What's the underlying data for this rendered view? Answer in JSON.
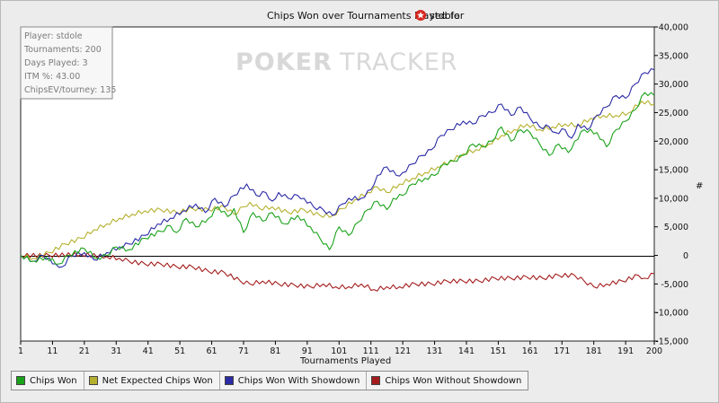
{
  "chart_data": {
    "type": "line",
    "title": "Chips Won over Tournaments Played for",
    "player_name": "stdole",
    "xlabel": "Tournaments Played",
    "ylabel": "#",
    "xlim": [
      1,
      200
    ],
    "ylim": [
      -15000,
      40000
    ],
    "x_ticks": [
      1,
      11,
      21,
      31,
      41,
      51,
      61,
      71,
      81,
      91,
      101,
      111,
      121,
      131,
      141,
      151,
      161,
      171,
      181,
      191,
      200
    ],
    "y_ticks": [
      "40,000",
      "35,000",
      "30,000",
      "25,000",
      "20,000",
      "15,000",
      "10,000",
      "5,000",
      "0",
      "-5,000",
      "-10,000",
      "-15,000"
    ],
    "legend_placement": "bottom-left",
    "series": [
      {
        "name": "Chips Won",
        "color": "#1aa21a",
        "points": [
          [
            1,
            0
          ],
          [
            5,
            -1000
          ],
          [
            9,
            -300
          ],
          [
            13,
            -1500
          ],
          [
            16,
            0
          ],
          [
            21,
            1200
          ],
          [
            25,
            -500
          ],
          [
            28,
            0
          ],
          [
            31,
            1500
          ],
          [
            35,
            1000
          ],
          [
            40,
            3000
          ],
          [
            45,
            4200
          ],
          [
            48,
            5200
          ],
          [
            50,
            4000
          ],
          [
            53,
            6500
          ],
          [
            56,
            5000
          ],
          [
            60,
            6500
          ],
          [
            63,
            8500
          ],
          [
            66,
            6800
          ],
          [
            68,
            8200
          ],
          [
            71,
            4000
          ],
          [
            74,
            7500
          ],
          [
            77,
            6000
          ],
          [
            80,
            7500
          ],
          [
            84,
            5500
          ],
          [
            88,
            7000
          ],
          [
            92,
            5000
          ],
          [
            95,
            3000
          ],
          [
            98,
            1000
          ],
          [
            101,
            5000
          ],
          [
            104,
            3500
          ],
          [
            107,
            5800
          ],
          [
            110,
            8000
          ],
          [
            113,
            9500
          ],
          [
            116,
            8000
          ],
          [
            118,
            10000
          ],
          [
            121,
            10500
          ],
          [
            124,
            12500
          ],
          [
            128,
            13500
          ],
          [
            131,
            14000
          ],
          [
            134,
            16000
          ],
          [
            137,
            16500
          ],
          [
            140,
            17500
          ],
          [
            143,
            19500
          ],
          [
            146,
            19000
          ],
          [
            149,
            20000
          ],
          [
            152,
            22500
          ],
          [
            155,
            20000
          ],
          [
            158,
            22000
          ],
          [
            161,
            21500
          ],
          [
            164,
            19500
          ],
          [
            167,
            17500
          ],
          [
            170,
            19500
          ],
          [
            173,
            18000
          ],
          [
            175,
            20000
          ],
          [
            178,
            22000
          ],
          [
            182,
            21500
          ],
          [
            185,
            19000
          ],
          [
            188,
            22000
          ],
          [
            191,
            23500
          ],
          [
            194,
            25500
          ],
          [
            197,
            28500
          ],
          [
            200,
            28000
          ]
        ]
      },
      {
        "name": "Net Expected Chips Won",
        "color": "#b5b02e",
        "points": [
          [
            1,
            0
          ],
          [
            5,
            -500
          ],
          [
            10,
            500
          ],
          [
            15,
            2000
          ],
          [
            20,
            3000
          ],
          [
            24,
            4500
          ],
          [
            28,
            5500
          ],
          [
            32,
            6500
          ],
          [
            36,
            7200
          ],
          [
            40,
            7800
          ],
          [
            45,
            8000
          ],
          [
            50,
            7500
          ],
          [
            55,
            8200
          ],
          [
            60,
            8000
          ],
          [
            65,
            8500
          ],
          [
            68,
            7200
          ],
          [
            71,
            8500
          ],
          [
            73,
            9300
          ],
          [
            76,
            8200
          ],
          [
            80,
            8500
          ],
          [
            85,
            7500
          ],
          [
            90,
            8000
          ],
          [
            95,
            7000
          ],
          [
            99,
            7000
          ],
          [
            102,
            8200
          ],
          [
            106,
            9800
          ],
          [
            110,
            11000
          ],
          [
            113,
            12000
          ],
          [
            116,
            11000
          ],
          [
            120,
            12500
          ],
          [
            124,
            13500
          ],
          [
            128,
            14500
          ],
          [
            132,
            15500
          ],
          [
            136,
            16500
          ],
          [
            140,
            17800
          ],
          [
            144,
            18500
          ],
          [
            148,
            19500
          ],
          [
            152,
            21000
          ],
          [
            156,
            22000
          ],
          [
            160,
            23000
          ],
          [
            164,
            22000
          ],
          [
            168,
            22500
          ],
          [
            172,
            23000
          ],
          [
            176,
            22800
          ],
          [
            180,
            24000
          ],
          [
            184,
            24500
          ],
          [
            188,
            24500
          ],
          [
            192,
            25000
          ],
          [
            196,
            27000
          ],
          [
            200,
            26500
          ]
        ]
      },
      {
        "name": "Chips Won With Showdown",
        "color": "#2b2ba6",
        "points": [
          [
            1,
            0
          ],
          [
            5,
            -1000
          ],
          [
            8,
            0
          ],
          [
            12,
            -1500
          ],
          [
            14,
            -2000
          ],
          [
            17,
            0
          ],
          [
            21,
            500
          ],
          [
            24,
            -800
          ],
          [
            28,
            500
          ],
          [
            32,
            1500
          ],
          [
            35,
            2000
          ],
          [
            40,
            3500
          ],
          [
            44,
            5500
          ],
          [
            48,
            6500
          ],
          [
            52,
            7800
          ],
          [
            56,
            9000
          ],
          [
            59,
            7500
          ],
          [
            62,
            10000
          ],
          [
            65,
            8500
          ],
          [
            68,
            10500
          ],
          [
            72,
            12500
          ],
          [
            75,
            10500
          ],
          [
            78,
            11000
          ],
          [
            80,
            9500
          ],
          [
            82,
            11000
          ],
          [
            85,
            10000
          ],
          [
            88,
            10500
          ],
          [
            90,
            10000
          ],
          [
            93,
            8500
          ],
          [
            96,
            8000
          ],
          [
            99,
            7000
          ],
          [
            102,
            9000
          ],
          [
            104,
            10000
          ],
          [
            108,
            10000
          ],
          [
            111,
            11500
          ],
          [
            113,
            14000
          ],
          [
            116,
            15500
          ],
          [
            119,
            14000
          ],
          [
            121,
            14500
          ],
          [
            124,
            16000
          ],
          [
            127,
            17500
          ],
          [
            130,
            18500
          ],
          [
            133,
            21000
          ],
          [
            136,
            22000
          ],
          [
            140,
            23500
          ],
          [
            143,
            23000
          ],
          [
            146,
            24500
          ],
          [
            149,
            25000
          ],
          [
            152,
            26500
          ],
          [
            155,
            24500
          ],
          [
            158,
            26000
          ],
          [
            161,
            24000
          ],
          [
            164,
            22500
          ],
          [
            167,
            22500
          ],
          [
            169,
            21500
          ],
          [
            172,
            22000
          ],
          [
            174,
            20500
          ],
          [
            176,
            23000
          ],
          [
            179,
            22000
          ],
          [
            182,
            24500
          ],
          [
            185,
            26000
          ],
          [
            188,
            28000
          ],
          [
            191,
            27500
          ],
          [
            194,
            30000
          ],
          [
            197,
            32000
          ],
          [
            200,
            32500
          ]
        ]
      },
      {
        "name": "Chips Won Without Showdown",
        "color": "#a41d1d",
        "points": [
          [
            1,
            0
          ],
          [
            10,
            0
          ],
          [
            20,
            200
          ],
          [
            28,
            -200
          ],
          [
            32,
            -500
          ],
          [
            35,
            -1000
          ],
          [
            40,
            -1500
          ],
          [
            45,
            -1500
          ],
          [
            50,
            -2000
          ],
          [
            55,
            -2000
          ],
          [
            60,
            -2800
          ],
          [
            65,
            -3000
          ],
          [
            70,
            -4500
          ],
          [
            73,
            -5000
          ],
          [
            77,
            -4500
          ],
          [
            82,
            -5000
          ],
          [
            87,
            -5200
          ],
          [
            92,
            -5500
          ],
          [
            96,
            -5000
          ],
          [
            100,
            -5500
          ],
          [
            104,
            -5500
          ],
          [
            108,
            -5000
          ],
          [
            112,
            -6000
          ],
          [
            116,
            -5500
          ],
          [
            120,
            -5500
          ],
          [
            125,
            -5000
          ],
          [
            130,
            -5000
          ],
          [
            135,
            -4500
          ],
          [
            140,
            -4500
          ],
          [
            145,
            -4500
          ],
          [
            150,
            -4000
          ],
          [
            155,
            -4000
          ],
          [
            160,
            -3800
          ],
          [
            165,
            -4000
          ],
          [
            170,
            -3500
          ],
          [
            175,
            -3500
          ],
          [
            178,
            -4500
          ],
          [
            181,
            -5500
          ],
          [
            185,
            -5000
          ],
          [
            190,
            -4500
          ],
          [
            195,
            -3500
          ],
          [
            197,
            -4000
          ],
          [
            200,
            -3200
          ]
        ]
      }
    ]
  },
  "info_box": {
    "player": "Player: stdole",
    "tournaments": "Tournaments: 200",
    "days_played": "Days Played: 3",
    "itm": "ITM %: 43.00",
    "chips_ev": "ChipsEV/tourney: 135"
  },
  "watermark": {
    "part_a": "POKER",
    "part_b": "TRACKER"
  }
}
